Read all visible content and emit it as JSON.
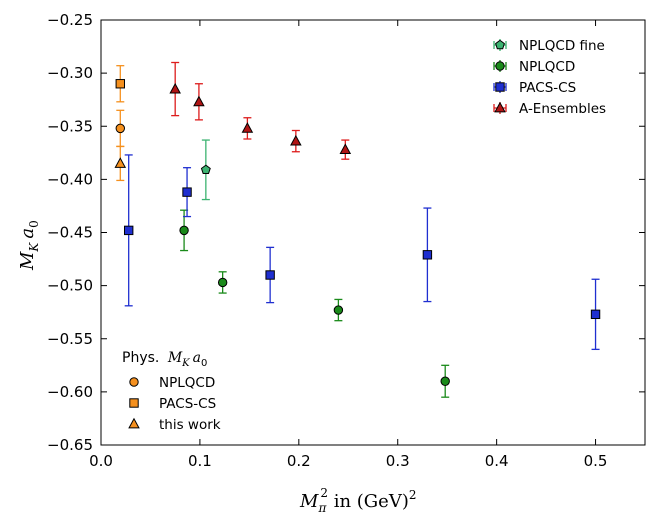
{
  "chart_data": {
    "type": "scatter",
    "title": "",
    "xlabel": "M_π² in (GeV)²",
    "ylabel": "M_K a_0",
    "xlabel_parts": {
      "main": "M",
      "sub": "π",
      "sup": "2",
      "rest": "  in (GeV)",
      "rest_sup": "2"
    },
    "ylabel_parts": {
      "m": "M",
      "k": "K",
      "a": "a",
      "zero": "0"
    },
    "xlim": [
      0.0,
      0.55
    ],
    "ylim": [
      -0.65,
      -0.25
    ],
    "xticks": [
      0.0,
      0.1,
      0.2,
      0.3,
      0.4,
      0.5
    ],
    "xtick_labels": [
      "0.0",
      "0.1",
      "0.2",
      "0.3",
      "0.4",
      "0.5"
    ],
    "yticks": [
      -0.65,
      -0.6,
      -0.55,
      -0.5,
      -0.45,
      -0.4,
      -0.35,
      -0.3,
      -0.25
    ],
    "ytick_labels": [
      "−0.65",
      "−0.60",
      "−0.55",
      "−0.50",
      "−0.45",
      "−0.40",
      "−0.35",
      "−0.30",
      "−0.25"
    ],
    "grid": false,
    "legend_placement": "top-right",
    "series": [
      {
        "name": "NPLQCD fine",
        "marker": "pentagon",
        "color": "#3cb371",
        "face": "#3cb371",
        "points": [
          {
            "x": 0.106,
            "y": -0.391,
            "err": 0.028
          }
        ]
      },
      {
        "name": "NPLQCD",
        "marker": "circle",
        "color": "#1a8a1a",
        "face": "#1a8a1a",
        "points": [
          {
            "x": 0.084,
            "y": -0.448,
            "err": 0.019
          },
          {
            "x": 0.123,
            "y": -0.497,
            "err": 0.01
          },
          {
            "x": 0.24,
            "y": -0.523,
            "err": 0.01
          },
          {
            "x": 0.348,
            "y": -0.59,
            "err": 0.015
          }
        ]
      },
      {
        "name": "PACS-CS",
        "marker": "square",
        "color": "#1f2fd0",
        "face": "#1f2fd0",
        "points": [
          {
            "x": 0.028,
            "y": -0.448,
            "err": 0.071
          },
          {
            "x": 0.087,
            "y": -0.412,
            "err": 0.023
          },
          {
            "x": 0.171,
            "y": -0.49,
            "err": 0.026
          },
          {
            "x": 0.33,
            "y": -0.471,
            "err": 0.044
          },
          {
            "x": 0.5,
            "y": -0.527,
            "err": 0.033
          }
        ]
      },
      {
        "name": "A-Ensembles",
        "marker": "triangle",
        "color": "#dd1c1c",
        "face": "#b01414",
        "points": [
          {
            "x": 0.075,
            "y": -0.315,
            "err": 0.025
          },
          {
            "x": 0.099,
            "y": -0.327,
            "err": 0.017
          },
          {
            "x": 0.148,
            "y": -0.352,
            "err": 0.01
          },
          {
            "x": 0.197,
            "y": -0.364,
            "err": 0.01
          },
          {
            "x": 0.247,
            "y": -0.372,
            "err": 0.009
          }
        ]
      }
    ],
    "physical_legend_title_prefix": "Phys.",
    "physical_series": [
      {
        "name": "NPLQCD",
        "marker": "circle",
        "color": "#f5901e",
        "points": [
          {
            "x": 0.0195,
            "y": -0.352,
            "err": 0.017
          }
        ]
      },
      {
        "name": "PACS-CS",
        "marker": "square",
        "color": "#f5901e",
        "points": [
          {
            "x": 0.0195,
            "y": -0.31,
            "err": 0.017
          }
        ]
      },
      {
        "name": "this work",
        "marker": "triangle",
        "color": "#f5901e",
        "points": [
          {
            "x": 0.0195,
            "y": -0.385,
            "err": 0.016
          }
        ]
      }
    ]
  }
}
